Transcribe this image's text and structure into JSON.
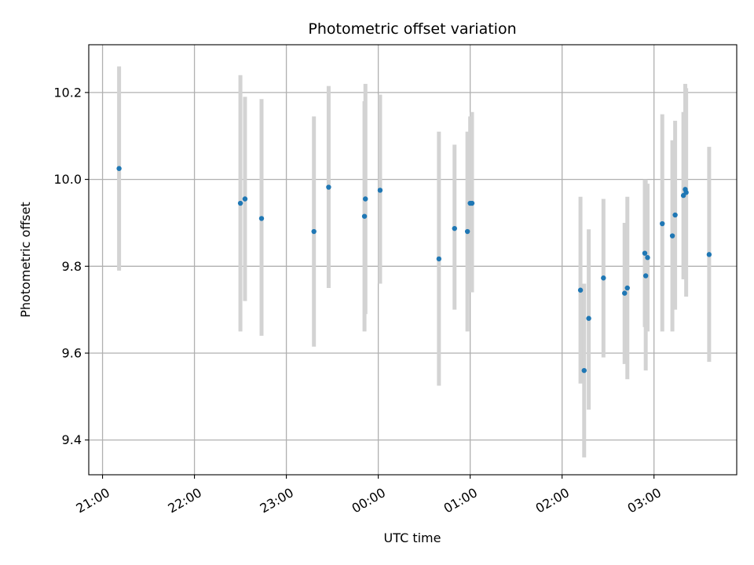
{
  "chart_data": {
    "type": "scatter",
    "title": "Photometric offset variation",
    "xlabel": "UTC time",
    "ylabel": "Photometric offset",
    "x_axis_type": "time",
    "x_unit": "hours UTC (values >= 24 fall after midnight)",
    "xlim": [
      20.85,
      27.9
    ],
    "ylim": [
      9.32,
      10.31
    ],
    "grid": true,
    "xticks": [
      {
        "value": 21,
        "label": "21:00"
      },
      {
        "value": 22,
        "label": "22:00"
      },
      {
        "value": 23,
        "label": "23:00"
      },
      {
        "value": 24,
        "label": "00:00"
      },
      {
        "value": 25,
        "label": "01:00"
      },
      {
        "value": 26,
        "label": "02:00"
      },
      {
        "value": 27,
        "label": "03:00"
      }
    ],
    "yticks": [
      {
        "value": 9.4,
        "label": "9.4"
      },
      {
        "value": 9.6,
        "label": "9.6"
      },
      {
        "value": 9.8,
        "label": "9.8"
      },
      {
        "value": 10.0,
        "label": "10.0"
      },
      {
        "value": 10.2,
        "label": "10.2"
      }
    ],
    "colors": {
      "points": "#1f77b4",
      "errorbars": "#d3d3d3",
      "grid": "#b0b0b0"
    },
    "points": [
      {
        "x": 21.18,
        "y": 10.025,
        "ylow": 9.79,
        "yhigh": 10.26
      },
      {
        "x": 22.5,
        "y": 9.945,
        "ylow": 9.65,
        "yhigh": 10.24
      },
      {
        "x": 22.55,
        "y": 9.955,
        "ylow": 9.72,
        "yhigh": 10.19
      },
      {
        "x": 22.73,
        "y": 9.91,
        "ylow": 9.64,
        "yhigh": 10.185
      },
      {
        "x": 23.3,
        "y": 9.88,
        "ylow": 9.615,
        "yhigh": 10.145
      },
      {
        "x": 23.46,
        "y": 9.982,
        "ylow": 9.75,
        "yhigh": 10.215
      },
      {
        "x": 23.85,
        "y": 9.915,
        "ylow": 9.65,
        "yhigh": 10.18
      },
      {
        "x": 23.86,
        "y": 9.955,
        "ylow": 9.69,
        "yhigh": 10.22
      },
      {
        "x": 24.02,
        "y": 9.975,
        "ylow": 9.76,
        "yhigh": 10.195
      },
      {
        "x": 24.66,
        "y": 9.817,
        "ylow": 9.525,
        "yhigh": 10.11
      },
      {
        "x": 24.83,
        "y": 9.887,
        "ylow": 9.7,
        "yhigh": 10.08
      },
      {
        "x": 24.97,
        "y": 9.88,
        "ylow": 9.65,
        "yhigh": 10.11
      },
      {
        "x": 25.0,
        "y": 9.945,
        "ylow": 9.74,
        "yhigh": 10.145
      },
      {
        "x": 25.02,
        "y": 9.945,
        "ylow": 9.74,
        "yhigh": 10.155
      },
      {
        "x": 26.2,
        "y": 9.745,
        "ylow": 9.53,
        "yhigh": 9.96
      },
      {
        "x": 26.24,
        "y": 9.56,
        "ylow": 9.36,
        "yhigh": 9.76
      },
      {
        "x": 26.29,
        "y": 9.68,
        "ylow": 9.47,
        "yhigh": 9.885
      },
      {
        "x": 26.45,
        "y": 9.773,
        "ylow": 9.59,
        "yhigh": 9.955
      },
      {
        "x": 26.68,
        "y": 9.738,
        "ylow": 9.575,
        "yhigh": 9.9
      },
      {
        "x": 26.71,
        "y": 9.75,
        "ylow": 9.54,
        "yhigh": 9.96
      },
      {
        "x": 26.9,
        "y": 9.83,
        "ylow": 9.66,
        "yhigh": 10.0
      },
      {
        "x": 26.91,
        "y": 9.778,
        "ylow": 9.56,
        "yhigh": 10.0
      },
      {
        "x": 26.93,
        "y": 9.82,
        "ylow": 9.65,
        "yhigh": 9.99
      },
      {
        "x": 27.09,
        "y": 9.898,
        "ylow": 9.65,
        "yhigh": 10.15
      },
      {
        "x": 27.2,
        "y": 9.87,
        "ylow": 9.65,
        "yhigh": 10.09
      },
      {
        "x": 27.23,
        "y": 9.918,
        "ylow": 9.7,
        "yhigh": 10.135
      },
      {
        "x": 27.32,
        "y": 9.963,
        "ylow": 9.77,
        "yhigh": 10.155
      },
      {
        "x": 27.34,
        "y": 9.977,
        "ylow": 9.77,
        "yhigh": 10.22
      },
      {
        "x": 27.35,
        "y": 9.97,
        "ylow": 9.73,
        "yhigh": 10.21
      },
      {
        "x": 27.6,
        "y": 9.827,
        "ylow": 9.58,
        "yhigh": 10.075
      }
    ]
  }
}
